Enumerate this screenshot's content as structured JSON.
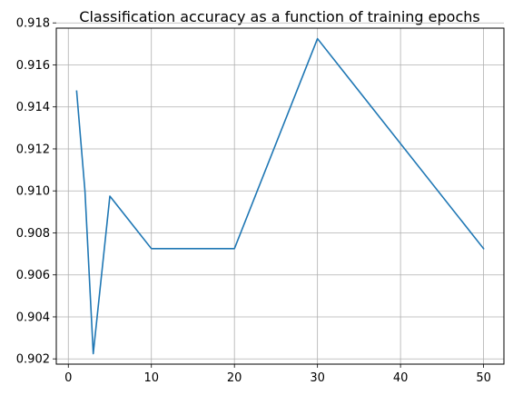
{
  "chart_data": {
    "type": "line",
    "title": "Classification accuracy as a function of training epochs",
    "xlabel": "",
    "ylabel": "",
    "x": [
      1,
      2,
      3,
      5,
      10,
      20,
      30,
      50
    ],
    "series": [
      {
        "values": [
          0.91475,
          0.91,
          0.90225,
          0.90975,
          0.90725,
          0.90725,
          0.91725,
          0.90725
        ]
      }
    ],
    "xlim": [
      -1.45,
      52.45
    ],
    "ylim": [
      0.90175,
      0.91775
    ],
    "xticks": [
      0,
      10,
      20,
      30,
      40,
      50
    ],
    "xtick_labels": [
      "0",
      "10",
      "20",
      "30",
      "40",
      "50"
    ],
    "yticks": [
      0.902,
      0.904,
      0.906,
      0.908,
      0.91,
      0.912,
      0.914,
      0.916,
      0.918
    ],
    "ytick_labels": [
      "0.902",
      "0.904",
      "0.906",
      "0.908",
      "0.910",
      "0.912",
      "0.914",
      "0.916",
      "0.918"
    ],
    "grid": true,
    "line_color": "#1f77b4",
    "grid_color": "#b0b0b0"
  }
}
